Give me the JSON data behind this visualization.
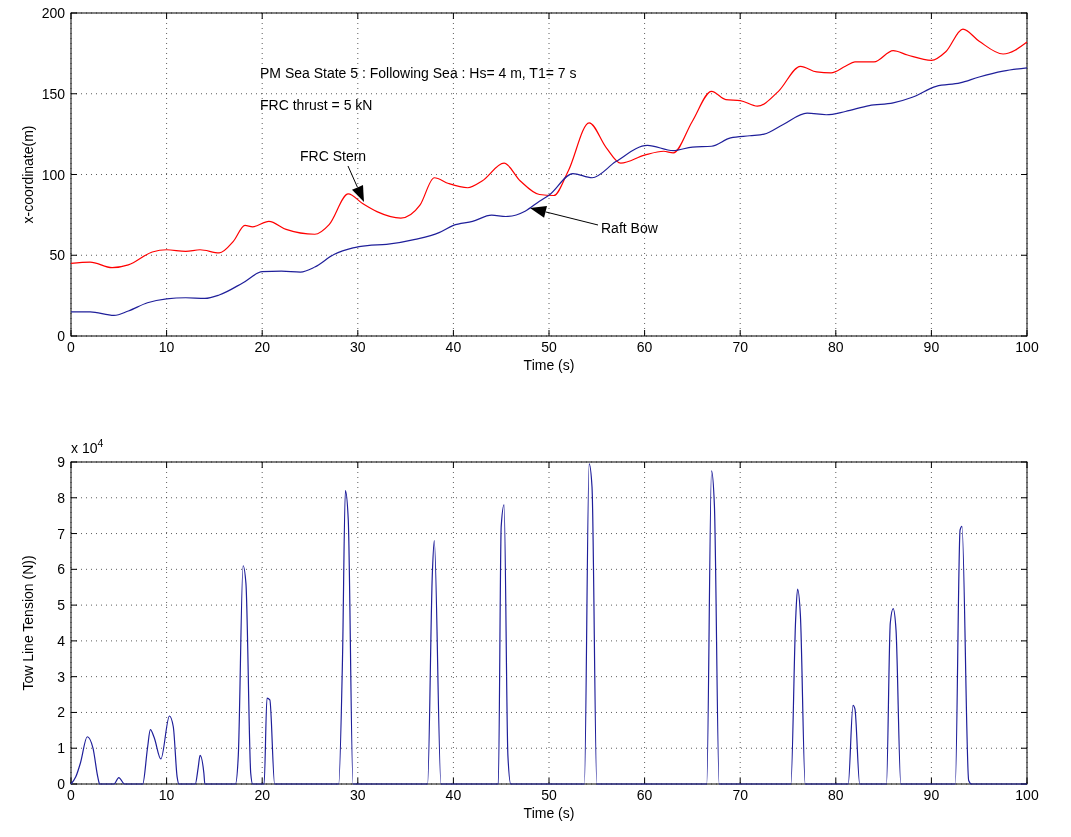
{
  "chart_data": [
    {
      "type": "line",
      "xlabel": "Time (s)",
      "ylabel": "x-coordinate(m)",
      "xlim": [
        0,
        100
      ],
      "xticks": [
        0,
        10,
        20,
        30,
        40,
        50,
        60,
        70,
        80,
        90,
        100
      ],
      "ylim": [
        0,
        200
      ],
      "yticks": [
        0,
        50,
        100,
        150,
        200
      ],
      "grid": true,
      "annotations": [
        "PM Sea State 5 : Following Sea : Hs= 4 m, T1= 7 s",
        "FRC thrust = 5 kN",
        "FRC Stern",
        "Raft Bow"
      ],
      "series": [
        {
          "color": "#ff0000",
          "x": [
            0,
            2,
            4.3,
            6,
            8.5,
            10,
            12,
            13.5,
            15.5,
            17,
            18.2,
            19,
            20.7,
            22.5,
            25.5,
            27,
            29,
            30.5,
            32,
            34.5,
            36.5,
            38,
            39.5,
            41.5,
            43,
            45.3,
            47,
            49,
            50.5,
            52,
            54.2,
            56,
            57.5,
            60,
            62,
            63,
            65,
            67,
            68.5,
            70,
            71.8,
            74,
            76.3,
            78,
            79.5,
            81,
            82,
            84,
            86,
            87.5,
            90,
            91.5,
            93.3,
            95,
            97.5,
            100
          ],
          "values": [
            45,
            45.8,
            42.3,
            44,
            52,
            53.4,
            52.4,
            53.4,
            51.5,
            58.8,
            68.5,
            67.6,
            71,
            66,
            63,
            69,
            88,
            82,
            77,
            73,
            81,
            98,
            94.4,
            91.8,
            96,
            107,
            96,
            87.6,
            87,
            102,
            132,
            116.5,
            107,
            112,
            114.4,
            113.4,
            133,
            151.5,
            146.4,
            145.8,
            142.3,
            151.5,
            167,
            163.5,
            162.9,
            167,
            169.7,
            169.7,
            176.7,
            174,
            170.7,
            176,
            190,
            182.5,
            174.6,
            182
          ]
        },
        {
          "color": "#1f1f9a",
          "x": [
            0,
            2,
            4.5,
            6,
            8,
            10,
            12,
            14,
            15.5,
            18,
            20,
            22,
            24,
            25.5,
            27.5,
            29.5,
            31,
            33,
            36,
            38.5,
            40,
            42,
            44,
            45.5,
            47.5,
            49,
            50,
            52.5,
            54.5,
            57,
            60.3,
            63,
            65,
            67,
            69,
            71,
            72.5,
            74.5,
            77,
            79,
            81,
            83.5,
            86,
            88,
            90.5,
            93,
            95,
            97.5,
            100
          ],
          "values": [
            15,
            15,
            12.8,
            15.5,
            20.6,
            23,
            23.7,
            23.3,
            25.4,
            33,
            39.8,
            40.2,
            39.6,
            42.7,
            50.5,
            54.6,
            56,
            56.7,
            59.8,
            64,
            68.5,
            71,
            74.8,
            74,
            77.3,
            83.5,
            87.2,
            100.6,
            98,
            108,
            118,
            114.8,
            117,
            117.5,
            122.7,
            124,
            125,
            131,
            138,
            137,
            139,
            142.7,
            144.3,
            147.8,
            154.6,
            156.7,
            160.4,
            164,
            166
          ]
        }
      ]
    },
    {
      "type": "line",
      "xlabel": "Time (s)",
      "ylabel": "Tow Line Tension (N))",
      "xlim": [
        0,
        100
      ],
      "xticks": [
        0,
        10,
        20,
        30,
        40,
        50,
        60,
        70,
        80,
        90,
        100
      ],
      "ylim": [
        0,
        9
      ],
      "yticks": [
        0,
        1,
        2,
        3,
        4,
        5,
        6,
        7,
        8,
        9
      ],
      "grid": true,
      "annotations": [
        "x 10$^{4}$"
      ],
      "series": [
        {
          "color": "#1f1f9a",
          "x": [
            0,
            0.5,
            1,
            1.7,
            2.3,
            2.8,
            3,
            4.5,
            5,
            5.6,
            7.5,
            8,
            8.3,
            8.7,
            9.4,
            10.3,
            10.7,
            11.1,
            11.3,
            13,
            13.3,
            13.5,
            13.9,
            14,
            17.2,
            17.5,
            18,
            18.3,
            18.8,
            19,
            20.2,
            20.5,
            20.8,
            21.3,
            28,
            28.4,
            28.7,
            29,
            29.5,
            37.3,
            37.8,
            38,
            38.7,
            44.7,
            45,
            45.3,
            45.7,
            46,
            53.7,
            54.2,
            54.5,
            55,
            66.5,
            67,
            67.3,
            67.8,
            75.3,
            75.8,
            76,
            76.3,
            76.8,
            81.3,
            81.8,
            82,
            82.5,
            85.3,
            85.7,
            86,
            86.3,
            86.8,
            92.5,
            93,
            93.2,
            93.9,
            94.2,
            100
          ],
          "values": [
            0,
            0.2,
            0.6,
            1.32,
            1,
            0.2,
            0,
            0,
            0.18,
            0,
            0,
            1,
            1.52,
            1.3,
            0.7,
            1.9,
            1.6,
            0.2,
            0,
            0,
            0.45,
            0.8,
            0.3,
            0,
            0,
            0.8,
            6.1,
            5.6,
            0.3,
            0,
            0,
            2.4,
            2.35,
            0,
            0,
            3.5,
            8.2,
            7.4,
            0,
            0,
            5.9,
            6.8,
            0,
            0,
            7.2,
            7.8,
            0.8,
            0,
            0,
            8.95,
            8.3,
            0,
            0,
            8.75,
            7.8,
            0,
            0,
            4.6,
            5.45,
            4.7,
            0,
            0,
            2.2,
            2.1,
            0,
            0,
            4.5,
            4.9,
            4.3,
            0,
            0,
            7.1,
            7.2,
            0.1,
            0,
            0
          ]
        }
      ]
    }
  ]
}
